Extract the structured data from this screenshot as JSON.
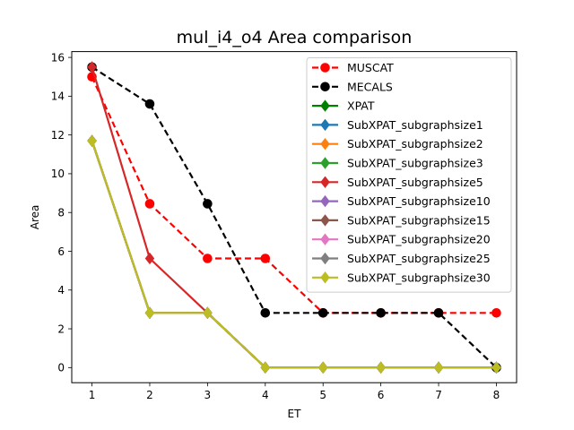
{
  "chart_data": {
    "type": "line",
    "title": "mul_i4_o4 Area comparison",
    "xlabel": "ET",
    "ylabel": "Area",
    "xlim": [
      0.65,
      8.35
    ],
    "ylim": [
      -0.78,
      16.3
    ],
    "xticks": [
      1,
      2,
      3,
      4,
      5,
      6,
      7,
      8
    ],
    "yticks": [
      0,
      2,
      4,
      6,
      8,
      10,
      12,
      14,
      16
    ],
    "grid": false,
    "legend_position": "top-right",
    "series": [
      {
        "name": "MUSCAT",
        "color": "#ff0000",
        "dash": "dashed",
        "marker": "circle",
        "x": [
          1,
          2,
          3,
          4,
          5,
          6,
          7,
          8
        ],
        "y": [
          15.0,
          8.45,
          5.63,
          5.63,
          2.82,
          2.82,
          2.82,
          2.82
        ]
      },
      {
        "name": "MECALS",
        "color": "#000000",
        "dash": "dashed",
        "marker": "circle",
        "x": [
          1,
          2,
          3,
          4,
          5,
          6,
          7,
          8
        ],
        "y": [
          15.5,
          13.6,
          8.45,
          2.82,
          2.82,
          2.82,
          2.82,
          0.0
        ]
      },
      {
        "name": "XPAT",
        "color": "#008000",
        "dash": "solid",
        "marker": "diamond",
        "x": [
          1,
          2,
          3,
          4,
          5,
          6,
          7,
          8
        ],
        "y": [
          11.7,
          2.82,
          2.82,
          0,
          0,
          0,
          0,
          0
        ]
      },
      {
        "name": "SubXPAT_subgraphsize1",
        "color": "#1f77b4",
        "dash": "solid",
        "marker": "diamond",
        "x": [
          1,
          2,
          3,
          4,
          5,
          6,
          7,
          8
        ],
        "y": [
          11.7,
          2.82,
          2.82,
          0,
          0,
          0,
          0,
          0
        ]
      },
      {
        "name": "SubXPAT_subgraphsize2",
        "color": "#ff7f0e",
        "dash": "solid",
        "marker": "diamond",
        "x": [
          1,
          2,
          3,
          4,
          5,
          6,
          7,
          8
        ],
        "y": [
          11.7,
          2.82,
          2.82,
          0,
          0,
          0,
          0,
          0
        ]
      },
      {
        "name": "SubXPAT_subgraphsize3",
        "color": "#2ca02c",
        "dash": "solid",
        "marker": "diamond",
        "x": [
          1,
          2,
          3,
          4,
          5,
          6,
          7,
          8
        ],
        "y": [
          11.7,
          2.82,
          2.82,
          0,
          0,
          0,
          0,
          0
        ]
      },
      {
        "name": "SubXPAT_subgraphsize5",
        "color": "#d62728",
        "dash": "solid",
        "marker": "diamond",
        "x": [
          1,
          2,
          3,
          4,
          5,
          6,
          7,
          8
        ],
        "y": [
          15.5,
          5.63,
          2.82,
          0,
          0,
          0,
          0,
          0
        ]
      },
      {
        "name": "SubXPAT_subgraphsize10",
        "color": "#9467bd",
        "dash": "solid",
        "marker": "diamond",
        "x": [
          1,
          2,
          3,
          4,
          5,
          6,
          7,
          8
        ],
        "y": [
          11.7,
          2.82,
          2.82,
          0,
          0,
          0,
          0,
          0
        ]
      },
      {
        "name": "SubXPAT_subgraphsize15",
        "color": "#8c564b",
        "dash": "solid",
        "marker": "diamond",
        "x": [
          1,
          2,
          3,
          4,
          5,
          6,
          7,
          8
        ],
        "y": [
          11.7,
          2.82,
          2.82,
          0,
          0,
          0,
          0,
          0
        ]
      },
      {
        "name": "SubXPAT_subgraphsize20",
        "color": "#e377c2",
        "dash": "solid",
        "marker": "diamond",
        "x": [
          1,
          2,
          3,
          4,
          5,
          6,
          7,
          8
        ],
        "y": [
          11.7,
          2.82,
          2.82,
          0,
          0,
          0,
          0,
          0
        ]
      },
      {
        "name": "SubXPAT_subgraphsize25",
        "color": "#7f7f7f",
        "dash": "solid",
        "marker": "diamond",
        "x": [
          1,
          2,
          3,
          4,
          5,
          6,
          7,
          8
        ],
        "y": [
          11.7,
          2.82,
          2.82,
          0,
          0,
          0,
          0,
          0
        ]
      },
      {
        "name": "SubXPAT_subgraphsize30",
        "color": "#bcbd22",
        "dash": "solid",
        "marker": "diamond",
        "x": [
          1,
          2,
          3,
          4,
          5,
          6,
          7,
          8
        ],
        "y": [
          11.7,
          2.82,
          2.82,
          0,
          0,
          0,
          0,
          0
        ]
      }
    ]
  }
}
